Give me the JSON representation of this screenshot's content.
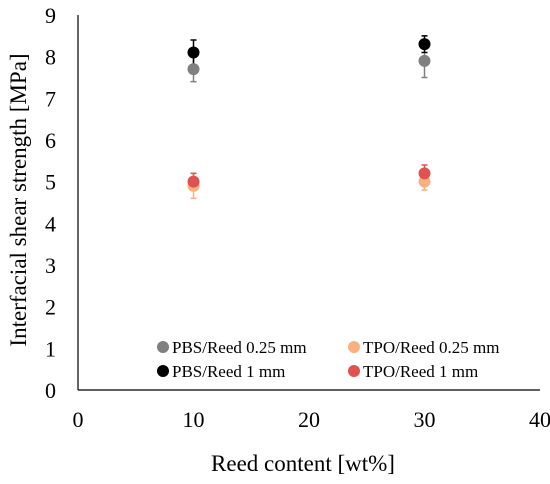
{
  "chart_data": {
    "type": "scatter",
    "xlabel": "Reed content [wt%]",
    "ylabel": "Interfacial shear strength [MPa]",
    "xlim": [
      0,
      40
    ],
    "ylim": [
      0,
      9
    ],
    "xticks": [
      0,
      10,
      20,
      30,
      40
    ],
    "yticks": [
      0,
      1,
      2,
      3,
      4,
      5,
      6,
      7,
      8,
      9
    ],
    "grid": false,
    "legend_position": "bottom-inside",
    "series": [
      {
        "name": "PBS/Reed 0.25 mm",
        "color": "#808080",
        "x": [
          10,
          30
        ],
        "y": [
          7.7,
          7.9
        ],
        "err": [
          0.3,
          0.4
        ]
      },
      {
        "name": "PBS/Reed 1 mm",
        "color": "#000000",
        "x": [
          10,
          30
        ],
        "y": [
          8.1,
          8.3
        ],
        "err": [
          0.3,
          0.2
        ]
      },
      {
        "name": "TPO/Reed 0.25 mm",
        "color": "#f9b27f",
        "x": [
          10,
          30
        ],
        "y": [
          4.9,
          5.0
        ],
        "err": [
          0.3,
          0.2
        ]
      },
      {
        "name": "TPO/Reed 1 mm",
        "color": "#e05252",
        "x": [
          10,
          30
        ],
        "y": [
          5.0,
          5.2
        ],
        "err": [
          0.2,
          0.2
        ]
      }
    ]
  }
}
